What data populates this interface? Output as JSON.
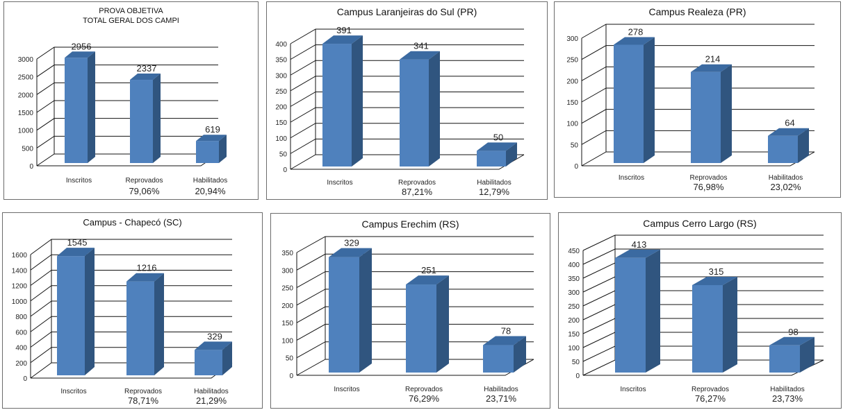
{
  "chart_data": [
    {
      "type": "bar",
      "title_lines": [
        "PROVA OBJETIVA",
        "TOTAL GERAL  DOS CAMPI"
      ],
      "categories": [
        "Inscritos",
        "Reprovados",
        "Habilitados"
      ],
      "values": [
        2956,
        2337,
        619
      ],
      "percent_labels": [
        "",
        "79,06%",
        "20,94%"
      ],
      "yticks": [
        0,
        500,
        1000,
        1500,
        2000,
        2500,
        3000
      ],
      "ylim": [
        0,
        3000
      ],
      "grid": true
    },
    {
      "type": "bar",
      "title_lines": [
        "Campus Laranjeiras do Sul (PR)"
      ],
      "categories": [
        "Inscritos",
        "Reprovados",
        "Habilitados"
      ],
      "values": [
        391,
        341,
        50
      ],
      "percent_labels": [
        "",
        "87,21%",
        "12,79%"
      ],
      "yticks": [
        0,
        50,
        100,
        150,
        200,
        250,
        300,
        350,
        400
      ],
      "ylim": [
        0,
        400
      ],
      "grid": true
    },
    {
      "type": "bar",
      "title_lines": [
        "Campus Realeza (PR)"
      ],
      "categories": [
        "Inscritos",
        "Reprovados",
        "Habilitados"
      ],
      "values": [
        278,
        214,
        64
      ],
      "percent_labels": [
        "",
        "76,98%",
        "23,02%"
      ],
      "yticks": [
        0,
        50,
        100,
        150,
        200,
        250,
        300
      ],
      "ylim": [
        0,
        300
      ],
      "grid": true
    },
    {
      "type": "bar",
      "title_lines": [
        "Campus - Chapecó  (SC)"
      ],
      "categories": [
        "Inscritos",
        "Reprovados",
        "Habilitados"
      ],
      "values": [
        1545,
        1216,
        329
      ],
      "percent_labels": [
        "",
        "78,71%",
        "21,29%"
      ],
      "yticks": [
        0,
        200,
        400,
        600,
        800,
        1000,
        1200,
        1400,
        1600
      ],
      "ylim": [
        0,
        1600
      ],
      "grid": true
    },
    {
      "type": "bar",
      "title_lines": [
        "Campus Erechim (RS)"
      ],
      "categories": [
        "Inscritos",
        "Reprovados",
        "Habilitados"
      ],
      "values": [
        329,
        251,
        78
      ],
      "percent_labels": [
        "",
        "76,29%",
        "23,71%"
      ],
      "yticks": [
        0,
        50,
        100,
        150,
        200,
        250,
        300,
        350
      ],
      "ylim": [
        0,
        350
      ],
      "grid": true
    },
    {
      "type": "bar",
      "title_lines": [
        "Campus Cerro Largo (RS)"
      ],
      "categories": [
        "Inscritos",
        "Reprovados",
        "Habilitados"
      ],
      "values": [
        413,
        315,
        98
      ],
      "percent_labels": [
        "",
        "76,27%",
        "23,73%"
      ],
      "yticks": [
        0,
        50,
        100,
        150,
        200,
        250,
        300,
        350,
        400,
        450
      ],
      "ylim": [
        0,
        450
      ],
      "grid": true
    }
  ],
  "colors": {
    "bar_front": "#4f81bd",
    "bar_side": "#30557f",
    "bar_top": "#3b6aa1",
    "grid": "#111111"
  }
}
